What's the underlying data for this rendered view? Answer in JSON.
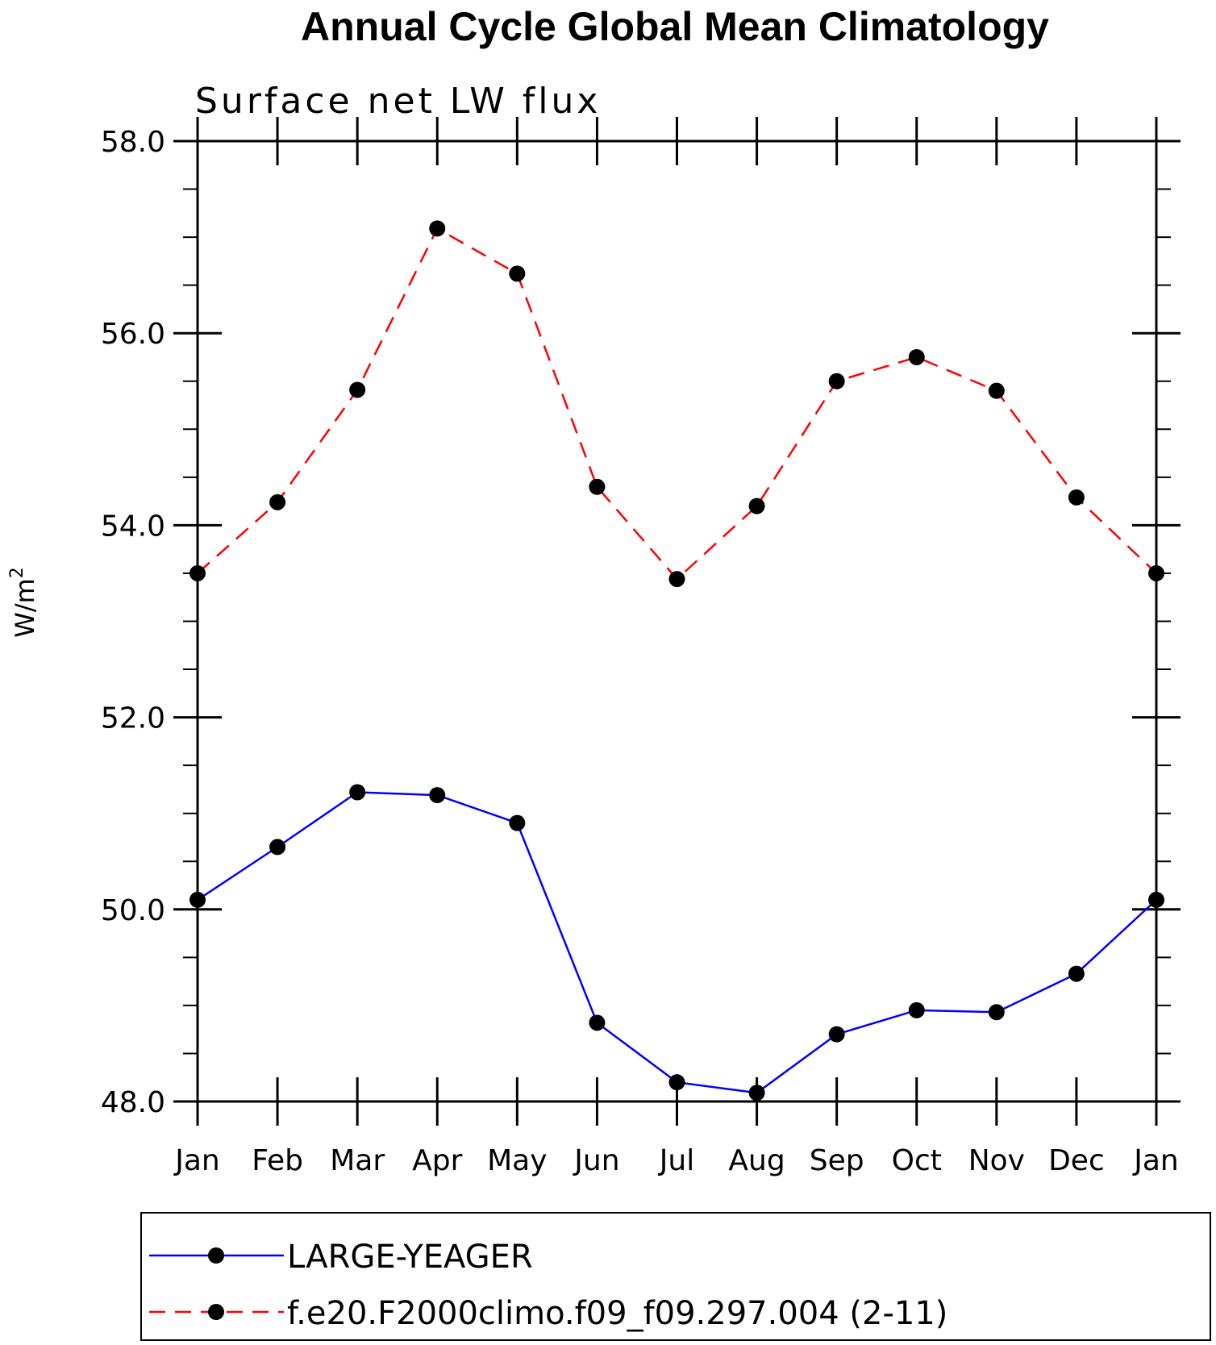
{
  "chart_data": {
    "type": "line",
    "title": "Annual Cycle Global Mean Climatology",
    "subtitle": "Surface net LW flux",
    "xlabel": "",
    "ylabel": "W/m",
    "ylabel_sup": "2",
    "categories": [
      "Jan",
      "Feb",
      "Mar",
      "Apr",
      "May",
      "Jun",
      "Jul",
      "Aug",
      "Sep",
      "Oct",
      "Nov",
      "Dec",
      "Jan"
    ],
    "ylim": [
      48.0,
      58.0
    ],
    "yticks": [
      48.0,
      50.0,
      52.0,
      54.0,
      56.0,
      58.0
    ],
    "ytick_labels": [
      "48.0",
      "50.0",
      "52.0",
      "54.0",
      "56.0",
      "58.0"
    ],
    "grid": false,
    "legend_position": "bottom",
    "series": [
      {
        "name": "LARGE-YEAGER",
        "color": "#0000ff",
        "line_style": "solid",
        "marker": "filled-circle",
        "values": [
          50.1,
          50.65,
          51.22,
          51.19,
          50.9,
          48.82,
          48.2,
          48.09,
          48.7,
          48.95,
          48.93,
          49.33,
          50.1
        ]
      },
      {
        "name": "f.e20.F2000climo.f09_f09.297.004 (2-11)",
        "color": "#ff0000",
        "line_style": "dashed",
        "marker": "filled-circle",
        "values": [
          53.5,
          54.24,
          55.41,
          57.09,
          56.62,
          54.4,
          53.44,
          54.2,
          55.5,
          55.75,
          55.4,
          54.29,
          53.5
        ]
      }
    ]
  }
}
